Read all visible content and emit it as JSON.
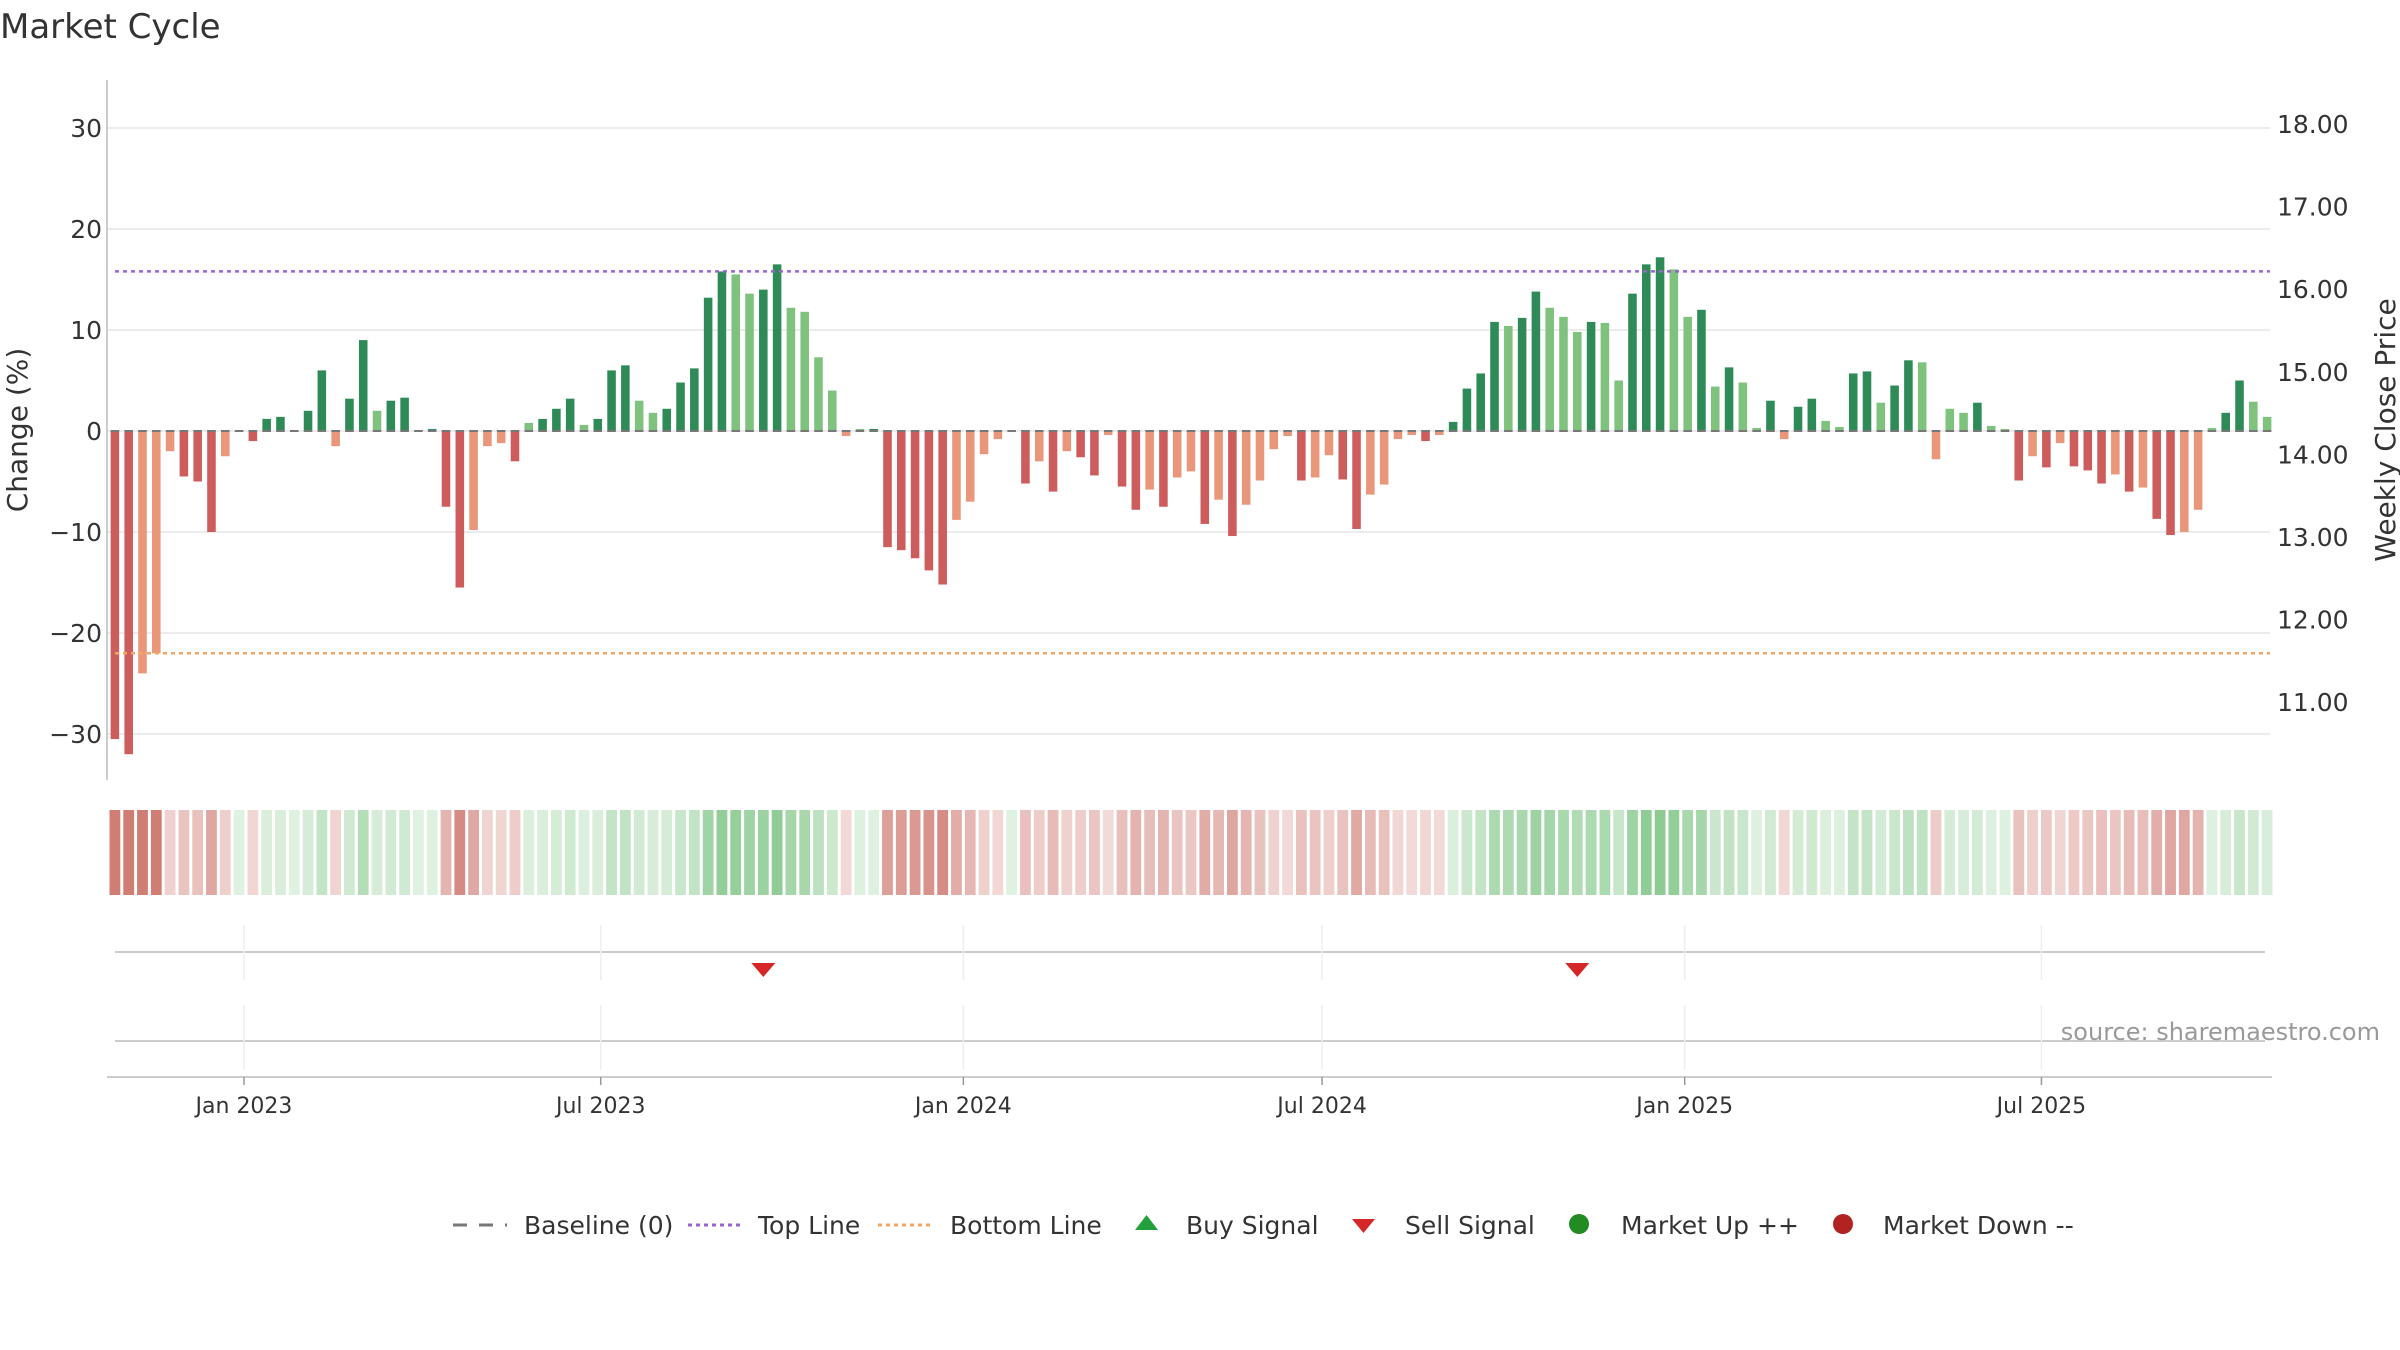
{
  "chart_data": {
    "type": "bar",
    "title": "Market Cycle",
    "ylabel_left": "Change (%)",
    "ylabel_right": "Weekly Close Price",
    "source": "source: sharemaestro.com",
    "ylim_left": [
      -35,
      35
    ],
    "yticks_left": [
      30,
      20,
      10,
      0,
      -10,
      -20,
      -30
    ],
    "yticks_right": [
      "18.00",
      "17.00",
      "16.00",
      "15.00",
      "14.00",
      "13.00",
      "12.00",
      "11.00"
    ],
    "top_line": 15.8,
    "bottom_line": -22,
    "x_start": "2022-10-24",
    "x_ticks": [
      {
        "label": "Jan 2023",
        "date": "2023-01-01"
      },
      {
        "label": "Jul 2023",
        "date": "2023-07-01"
      },
      {
        "label": "Jan 2024",
        "date": "2024-01-01"
      },
      {
        "label": "Jul 2024",
        "date": "2024-07-01"
      },
      {
        "label": "Jan 2025",
        "date": "2025-01-01"
      },
      {
        "label": "Jul 2025",
        "date": "2025-07-01"
      }
    ],
    "grid": true,
    "legend_position": "bottom",
    "values": [
      -30.5,
      -32,
      -24,
      -22,
      -2,
      -4.5,
      -5,
      -10,
      -2.5,
      0,
      -1,
      1.2,
      1.4,
      0,
      2,
      6,
      -1.5,
      3.2,
      9,
      2,
      3,
      3.3,
      0,
      0.2,
      -7.5,
      -15.5,
      -9.8,
      -1.5,
      -1.2,
      -3,
      0.8,
      1.2,
      2.2,
      3.2,
      0.6,
      1.2,
      6,
      6.5,
      3,
      1.8,
      2.2,
      4.8,
      6.2,
      13.2,
      15.8,
      15.5,
      13.6,
      14,
      16.5,
      12.2,
      11.8,
      7.3,
      4,
      -0.5,
      0.2,
      0.2,
      -11.5,
      -11.8,
      -12.6,
      -13.8,
      -15.2,
      -8.8,
      -7,
      -2.3,
      -0.8,
      0,
      -5.2,
      -3,
      -6,
      -2,
      -2.6,
      -4.4,
      -0.4,
      -5.5,
      -7.8,
      -5.8,
      -7.5,
      -4.6,
      -4,
      -9.2,
      -6.8,
      -10.4,
      -7.3,
      -4.9,
      -1.8,
      -0.5,
      -4.9,
      -4.6,
      -2.4,
      -4.8,
      -9.7,
      -6.3,
      -5.3,
      -0.8,
      -0.4,
      -1,
      -0.4,
      0.9,
      4.2,
      5.7,
      10.8,
      10.4,
      11.2,
      13.8,
      12.2,
      11.3,
      9.8,
      10.8,
      10.7,
      5,
      13.6,
      16.5,
      17.2,
      16,
      11.3,
      12,
      4.4,
      6.3,
      4.8,
      0.3,
      3,
      -0.8,
      2.4,
      3.2,
      1,
      0.4,
      5.7,
      5.9,
      2.8,
      4.5,
      7,
      6.8,
      -2.8,
      2.2,
      1.8,
      2.8,
      0.5,
      0.2,
      -4.9,
      -2.5,
      -3.6,
      -1.2,
      -3.5,
      -3.9,
      -5.2,
      -4.3,
      -6,
      -5.6,
      -8.7,
      -10.3,
      -10,
      -7.8,
      0.3,
      1.8,
      5,
      2.9,
      1.4
    ],
    "sell_signals": [
      "2023-09-18",
      "2024-11-04"
    ]
  },
  "legend": {
    "baseline": "Baseline (0)",
    "top_line": "Top Line",
    "bottom_line": "Bottom Line",
    "buy_signal": "Buy Signal",
    "sell_signal": "Sell Signal",
    "market_up": "Market Up ++",
    "market_down": "Market Down --"
  },
  "colors": {
    "up_strong": "#2e8b57",
    "up_light": "#7fc27d",
    "down_strong": "#cd5c5c",
    "down_light": "#e9967a",
    "top_line": "#9966cc",
    "bottom_line": "#f4a460",
    "baseline": "#777777",
    "buy": "#22a03c",
    "sell": "#d62728",
    "market_up": "#228b22",
    "market_down": "#b22222"
  }
}
